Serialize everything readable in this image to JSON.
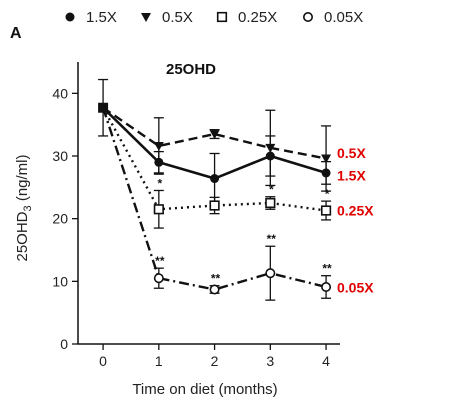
{
  "panel_letter": "A",
  "colors": {
    "ink": "#111111",
    "label_red": "#e00000"
  },
  "legend": [
    {
      "marker": "circle-filled",
      "label": "1.5X"
    },
    {
      "marker": "triangle-down-filled",
      "label": "0.5X"
    },
    {
      "marker": "square-open",
      "label": "0.25X"
    },
    {
      "marker": "circle-open",
      "label": "0.05X"
    }
  ],
  "chart_data": {
    "type": "line",
    "title": "25OHD",
    "xlabel": "Time on diet (months)",
    "ylabel_main": "25OHD",
    "ylabel_sub": "3",
    "ylabel_unit": " (ng/ml)",
    "x": [
      0,
      1,
      2,
      3,
      4
    ],
    "xlim": [
      -0.45,
      4.25
    ],
    "ylim": [
      0,
      45
    ],
    "x_ticks": [
      0,
      1,
      2,
      3,
      4
    ],
    "y_ticks": [
      0,
      10,
      20,
      30,
      40
    ],
    "start": {
      "x": 0,
      "y": 37.7,
      "err": 4.5
    },
    "series": [
      {
        "name": "1.5X",
        "marker": "circle-filled",
        "line": "solid",
        "values": [
          37.7,
          29.0,
          26.4,
          30.0,
          27.3
        ],
        "errors": [
          4.5,
          1.7,
          4.0,
          3.2,
          1.8
        ],
        "sig": [
          "",
          "",
          "",
          "",
          ""
        ]
      },
      {
        "name": "0.5X",
        "marker": "triangle-down-filled",
        "line": "dashed",
        "values": [
          37.7,
          31.6,
          33.5,
          31.3,
          29.6
        ],
        "errors": [
          4.5,
          4.5,
          0.7,
          6.0,
          5.2
        ],
        "sig": [
          "",
          "",
          "",
          "",
          ""
        ]
      },
      {
        "name": "0.25X",
        "marker": "square-open",
        "line": "dotted",
        "values": [
          37.7,
          21.5,
          22.1,
          22.5,
          21.3
        ],
        "errors": [
          4.5,
          3.0,
          1.3,
          1.0,
          1.5
        ],
        "sig": [
          "",
          "*",
          "",
          "*",
          "*"
        ]
      },
      {
        "name": "0.05X",
        "marker": "circle-open",
        "line": "dashdot",
        "values": [
          37.7,
          10.5,
          8.7,
          11.3,
          9.1
        ],
        "errors": [
          4.5,
          1.6,
          0.6,
          4.3,
          1.8
        ],
        "sig": [
          "",
          "**",
          "**",
          "**",
          "**"
        ]
      }
    ],
    "end_labels": [
      {
        "text": "0.5X",
        "y": 30.5
      },
      {
        "text": "1.5X",
        "y": 26.9
      },
      {
        "text": "0.25X",
        "y": 21.3
      },
      {
        "text": "0.05X",
        "y": 9.0
      }
    ]
  }
}
